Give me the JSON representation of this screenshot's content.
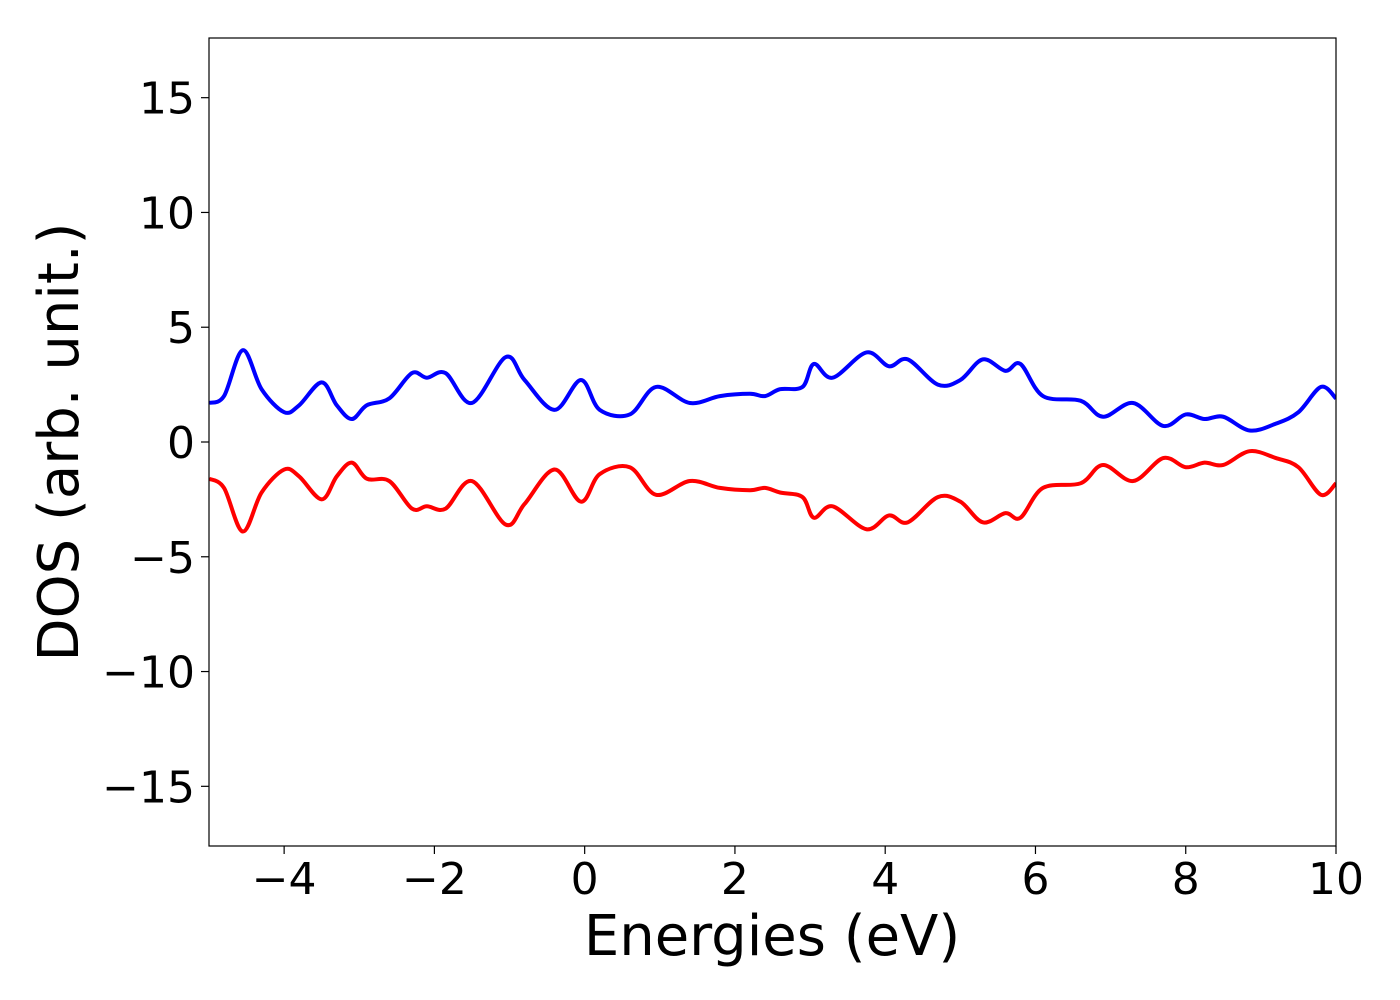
{
  "chart_data": {
    "type": "line",
    "x_label": "Energies (eV)",
    "y_label": "DOS (arb. unit.)",
    "x": [
      -5,
      -4.8,
      -4.55,
      -4.3,
      -4.0,
      -3.8,
      -3.5,
      -3.3,
      -3.1,
      -2.9,
      -2.6,
      -2.3,
      -2.1,
      -1.85,
      -1.5,
      -1.05,
      -0.8,
      -0.4,
      -0.05,
      0.2,
      0.6,
      0.95,
      1.4,
      1.8,
      2.2,
      2.4,
      2.6,
      2.9,
      3.05,
      3.3,
      3.75,
      4.05,
      4.3,
      4.7,
      5.0,
      5.3,
      5.6,
      5.8,
      6.1,
      6.6,
      6.9,
      7.3,
      7.7,
      8.0,
      8.25,
      8.5,
      8.85,
      9.2,
      9.5,
      9.8,
      10
    ],
    "series": [
      {
        "color": "#0000ff",
        "values": [
          1.7,
          2.0,
          4.0,
          2.3,
          1.3,
          1.6,
          2.6,
          1.6,
          1.0,
          1.6,
          1.9,
          3.0,
          2.8,
          3.0,
          1.7,
          3.7,
          2.7,
          1.4,
          2.7,
          1.4,
          1.2,
          2.4,
          1.7,
          2.0,
          2.1,
          2.0,
          2.3,
          2.4,
          3.4,
          2.8,
          3.9,
          3.3,
          3.6,
          2.5,
          2.7,
          3.6,
          3.1,
          3.4,
          2.0,
          1.8,
          1.1,
          1.7,
          0.7,
          1.2,
          1.0,
          1.1,
          0.5,
          0.8,
          1.3,
          2.4,
          1.9
        ]
      },
      {
        "color": "#ff0000",
        "values": [
          -1.6,
          -2.0,
          -3.9,
          -2.2,
          -1.2,
          -1.5,
          -2.5,
          -1.5,
          -0.9,
          -1.6,
          -1.7,
          -2.9,
          -2.8,
          -2.9,
          -1.7,
          -3.6,
          -2.7,
          -1.2,
          -2.6,
          -1.4,
          -1.1,
          -2.3,
          -1.7,
          -2.0,
          -2.1,
          -2.0,
          -2.2,
          -2.4,
          -3.3,
          -2.8,
          -3.8,
          -3.2,
          -3.5,
          -2.4,
          -2.6,
          -3.5,
          -3.1,
          -3.3,
          -2.0,
          -1.8,
          -1.0,
          -1.7,
          -0.7,
          -1.1,
          -0.9,
          -1.0,
          -0.4,
          -0.7,
          -1.1,
          -2.3,
          -1.8
        ]
      }
    ],
    "xlim": [
      -5,
      10
    ],
    "ylim": [
      -17.6,
      17.6
    ],
    "xticks": [
      {
        "value": -4,
        "label": "−4"
      },
      {
        "value": -2,
        "label": "−2"
      },
      0,
      2,
      4,
      6,
      8,
      10
    ],
    "yticks": [
      {
        "value": -15,
        "label": "−15"
      },
      {
        "value": -10,
        "label": "−10"
      },
      {
        "value": -5,
        "label": "−5"
      },
      0,
      5,
      10,
      15
    ]
  }
}
